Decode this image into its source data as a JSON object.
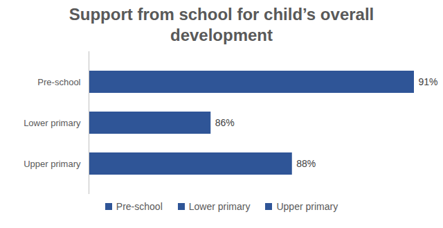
{
  "chart_data": {
    "type": "bar",
    "title": "Support from school for child’s overall development",
    "orientation": "horizontal",
    "categories": [
      "Pre-school",
      "Lower primary",
      "Upper primary"
    ],
    "values": [
      91,
      86,
      88
    ],
    "value_labels": [
      "91%",
      "86%",
      "88%"
    ],
    "color": "#2f5597",
    "xlim": [
      83,
      91
    ],
    "data_labels": true,
    "tick_labels": "y",
    "legend": "bottom"
  }
}
